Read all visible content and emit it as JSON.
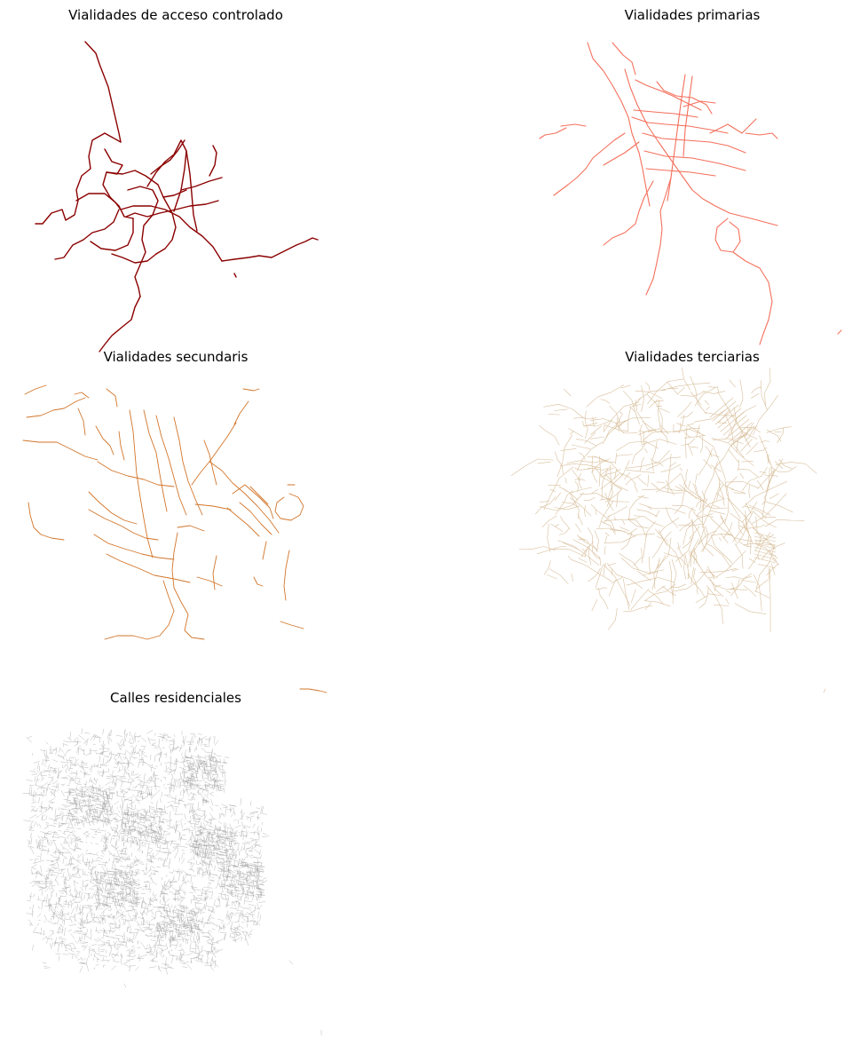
{
  "figure": {
    "panels": [
      {
        "title": "Vialidades de acceso controlado",
        "color": "#8b0000",
        "stroke": 1.4
      },
      {
        "title": "Vialidades primarias",
        "color": "#f4705c",
        "stroke": 1.1
      },
      {
        "title": "Vialidades secundaris",
        "color": "#d2752a",
        "stroke": 0.9
      },
      {
        "title": "Vialidades terciarias",
        "color": "#d8bf9c",
        "stroke": 0.6
      },
      {
        "title": "Calles residenciales",
        "color": "#9c9c9c",
        "stroke": 0.35
      }
    ]
  }
}
